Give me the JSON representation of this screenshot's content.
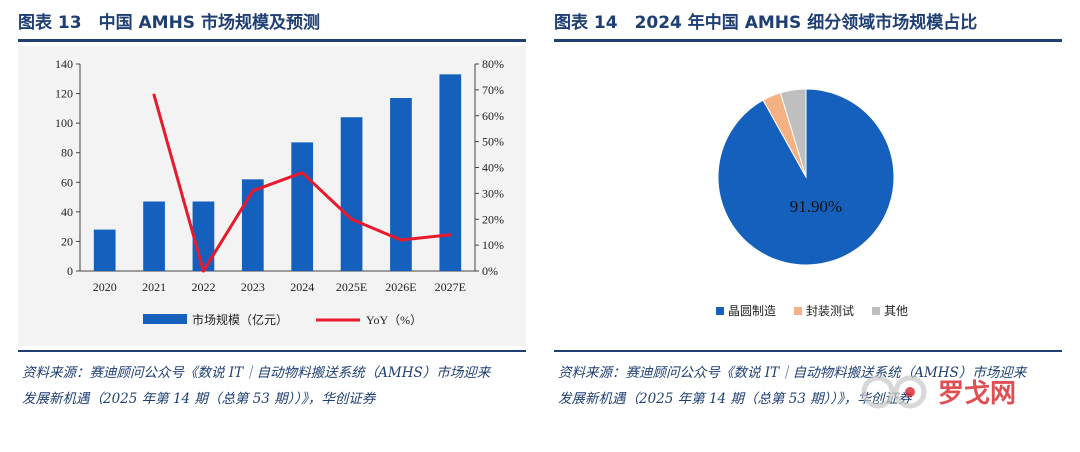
{
  "left": {
    "title": "图表 13　中国 AMHS 市场规模及预测",
    "source": "资料来源：赛迪顾问公众号《数说 IT｜自动物料搬送系统（AMHS）市场迎来发展新机遇（2025 年第 14 期（总第 53 期））》，华创证券"
  },
  "right": {
    "title": "图表 14　2024 年中国 AMHS 细分领域市场规模占比",
    "source": "资料来源：赛迪顾问公众号《数说 IT｜自动物料搬送系统（AMHS）市场迎来发展新机遇（2025 年第 14 期（总第 53 期））》，华创证券"
  },
  "watermark": {
    "text": "罗戈网"
  },
  "colors": {
    "bar": "#1560bd",
    "line": "#e8192c",
    "title": "#1f3f74",
    "pie_main": "#1560bd",
    "pie_second": "#f4b183",
    "pie_third": "#bfbfbf"
  },
  "chart_data": [
    {
      "type": "bar",
      "title": "",
      "categories": [
        "2020",
        "2021",
        "2022",
        "2023",
        "2024",
        "2025E",
        "2026E",
        "2027E"
      ],
      "series": [
        {
          "name": "市场规模（亿元）",
          "type": "bar",
          "axis": "left",
          "values": [
            28,
            47,
            47,
            62,
            87,
            104,
            117,
            133
          ]
        },
        {
          "name": "YoY（%）",
          "type": "line",
          "axis": "right",
          "values": [
            null,
            68,
            0,
            31,
            38,
            20,
            12,
            14
          ]
        }
      ],
      "ylim": [
        0,
        140
      ],
      "yticks": [
        "0",
        "20",
        "40",
        "60",
        "80",
        "100",
        "120",
        "140"
      ],
      "y2lim": [
        0,
        80
      ],
      "y2ticks": [
        "0%",
        "10%",
        "20%",
        "30%",
        "40%",
        "50%",
        "60%",
        "70%",
        "80%"
      ],
      "grid": false,
      "legend": "bottom"
    },
    {
      "type": "pie",
      "title": "",
      "labels": [
        "晶圆制造",
        "封装测试",
        "其他"
      ],
      "values": [
        91.9,
        3.4,
        4.7
      ],
      "data_labels": [
        "91.90%"
      ],
      "legend": "bottom"
    }
  ]
}
